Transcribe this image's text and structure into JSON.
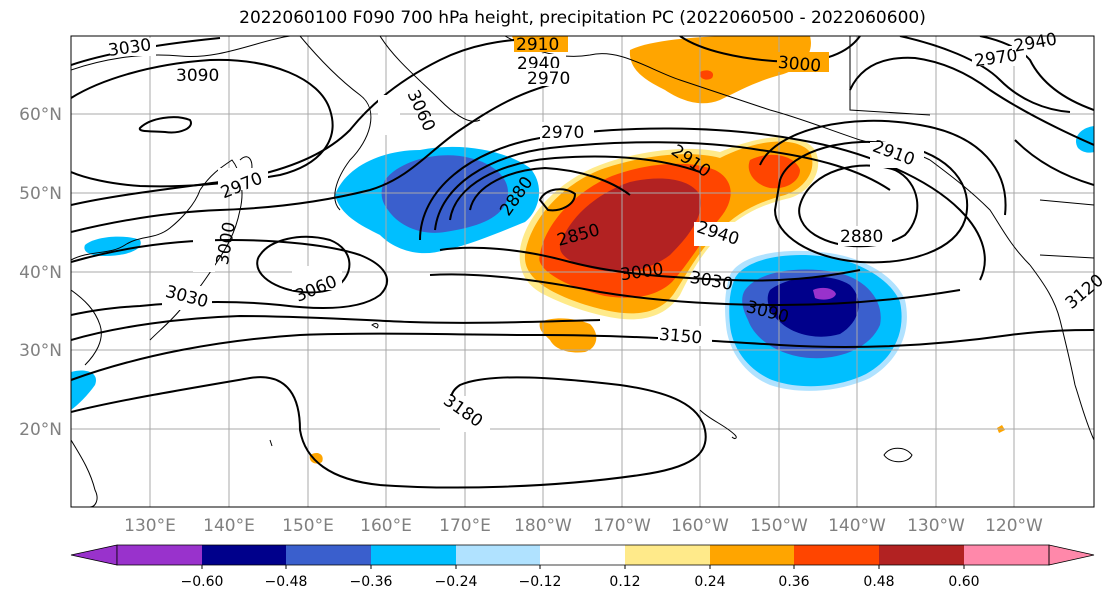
{
  "title": "2022060100 F090 700 hPa height, precipitation PC (2022060500 - 2022060600)",
  "lat_labels": [
    "60°N",
    "50°N",
    "40°N",
    "30°N",
    "20°N"
  ],
  "lon_labels": [
    "130°E",
    "140°E",
    "150°E",
    "160°E",
    "170°E",
    "180°W",
    "170°W",
    "160°W",
    "150°W",
    "140°W",
    "130°W",
    "120°W"
  ],
  "colorbar": {
    "tick_labels": [
      "−0.60",
      "−0.48",
      "−0.36",
      "−0.24",
      "−0.12",
      "0.12",
      "0.24",
      "0.36",
      "0.48",
      "0.60"
    ],
    "colors": [
      "#9932cc",
      "#00008b",
      "#3a5fcd",
      "#00bfff",
      "#b0e2ff",
      "#ffffff",
      "#ffea8a",
      "#ffa500",
      "#ff4500",
      "#b22222",
      "#ff88aa"
    ]
  },
  "contour_labels": [
    "3030",
    "3090",
    "3060",
    "3000",
    "2970",
    "3060",
    "2910",
    "2940",
    "2970",
    "3030",
    "2970",
    "2880",
    "2850",
    "2910",
    "2940",
    "3000",
    "3030",
    "3090",
    "3150",
    "3180",
    "3000",
    "2880",
    "2910",
    "2970",
    "2940",
    "3120"
  ],
  "colors": {
    "land_line": "#000000",
    "grid": "#a9a9a9",
    "contour": "#000000"
  }
}
